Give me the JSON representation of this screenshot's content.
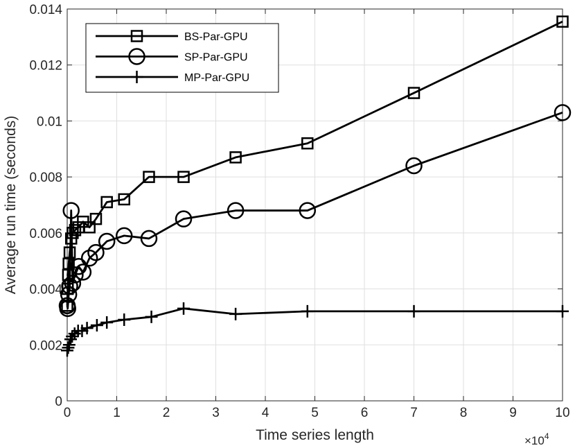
{
  "chart_data": {
    "type": "line",
    "title": "",
    "xlabel": "Time series length",
    "ylabel": "Average run time (seconds)",
    "xlim": [
      0,
      100000
    ],
    "ylim": [
      0,
      0.014
    ],
    "grid": true,
    "x_tick_values": [
      0,
      10000,
      20000,
      30000,
      40000,
      50000,
      60000,
      70000,
      80000,
      90000,
      100000
    ],
    "x_tick_labels": [
      "0",
      "1",
      "2",
      "3",
      "4",
      "5",
      "6",
      "7",
      "8",
      "9",
      "10"
    ],
    "x_multiplier": {
      "base": "×10",
      "exponent": "4"
    },
    "y_tick_values": [
      0,
      0.002,
      0.004,
      0.006,
      0.008,
      0.01,
      0.012,
      0.014
    ],
    "y_tick_labels": [
      "0",
      "0.002",
      "0.004",
      "0.006",
      "0.008",
      "0.01",
      "0.012",
      "0.014"
    ],
    "legend_position": "top-left",
    "series": [
      {
        "name": "BS-Par-GPU",
        "marker": "square",
        "color": "#000000",
        "points": [
          [
            0,
            0.0034
          ],
          [
            100,
            0.004
          ],
          [
            200,
            0.0045
          ],
          [
            300,
            0.0049
          ],
          [
            500,
            0.0053
          ],
          [
            800,
            0.0058
          ],
          [
            1100,
            0.006
          ],
          [
            1600,
            0.0061
          ],
          [
            2300,
            0.0062
          ],
          [
            3200,
            0.0064
          ],
          [
            4500,
            0.0062
          ],
          [
            5800,
            0.0065
          ],
          [
            8000,
            0.0071
          ],
          [
            11500,
            0.0072
          ],
          [
            16500,
            0.008
          ],
          [
            23500,
            0.008
          ],
          [
            34000,
            0.0087
          ],
          [
            48500,
            0.0092
          ],
          [
            70000,
            0.011
          ],
          [
            100000,
            0.01355
          ]
        ]
      },
      {
        "name": "SP-Par-GPU",
        "marker": "circle",
        "color": "#000000",
        "points": [
          [
            0,
            0.0034
          ],
          [
            100,
            0.0033
          ],
          [
            300,
            0.0038
          ],
          [
            500,
            0.0041
          ],
          [
            800,
            0.0068
          ],
          [
            1100,
            0.0042
          ],
          [
            1600,
            0.0045
          ],
          [
            2300,
            0.0048
          ],
          [
            3200,
            0.0046
          ],
          [
            4500,
            0.0051
          ],
          [
            5800,
            0.0053
          ],
          [
            8000,
            0.0057
          ],
          [
            11500,
            0.0059
          ],
          [
            16500,
            0.0058
          ],
          [
            23500,
            0.0065
          ],
          [
            34000,
            0.0068
          ],
          [
            48500,
            0.0068
          ],
          [
            70000,
            0.0084
          ],
          [
            100000,
            0.0103
          ]
        ]
      },
      {
        "name": "MP-Par-GPU",
        "marker": "plus",
        "color": "#000000",
        "points": [
          [
            0,
            0.0018
          ],
          [
            200,
            0.0019
          ],
          [
            400,
            0.002
          ],
          [
            700,
            0.0022
          ],
          [
            1000,
            0.0023
          ],
          [
            1500,
            0.0024
          ],
          [
            2200,
            0.0025
          ],
          [
            3000,
            0.0025
          ],
          [
            4000,
            0.0026
          ],
          [
            6000,
            0.0027
          ],
          [
            8000,
            0.0028
          ],
          [
            11500,
            0.0029
          ],
          [
            17000,
            0.003
          ],
          [
            23500,
            0.0033
          ],
          [
            34000,
            0.0031
          ],
          [
            48500,
            0.0032
          ],
          [
            70000,
            0.0032
          ],
          [
            100000,
            0.0032
          ]
        ]
      }
    ]
  }
}
